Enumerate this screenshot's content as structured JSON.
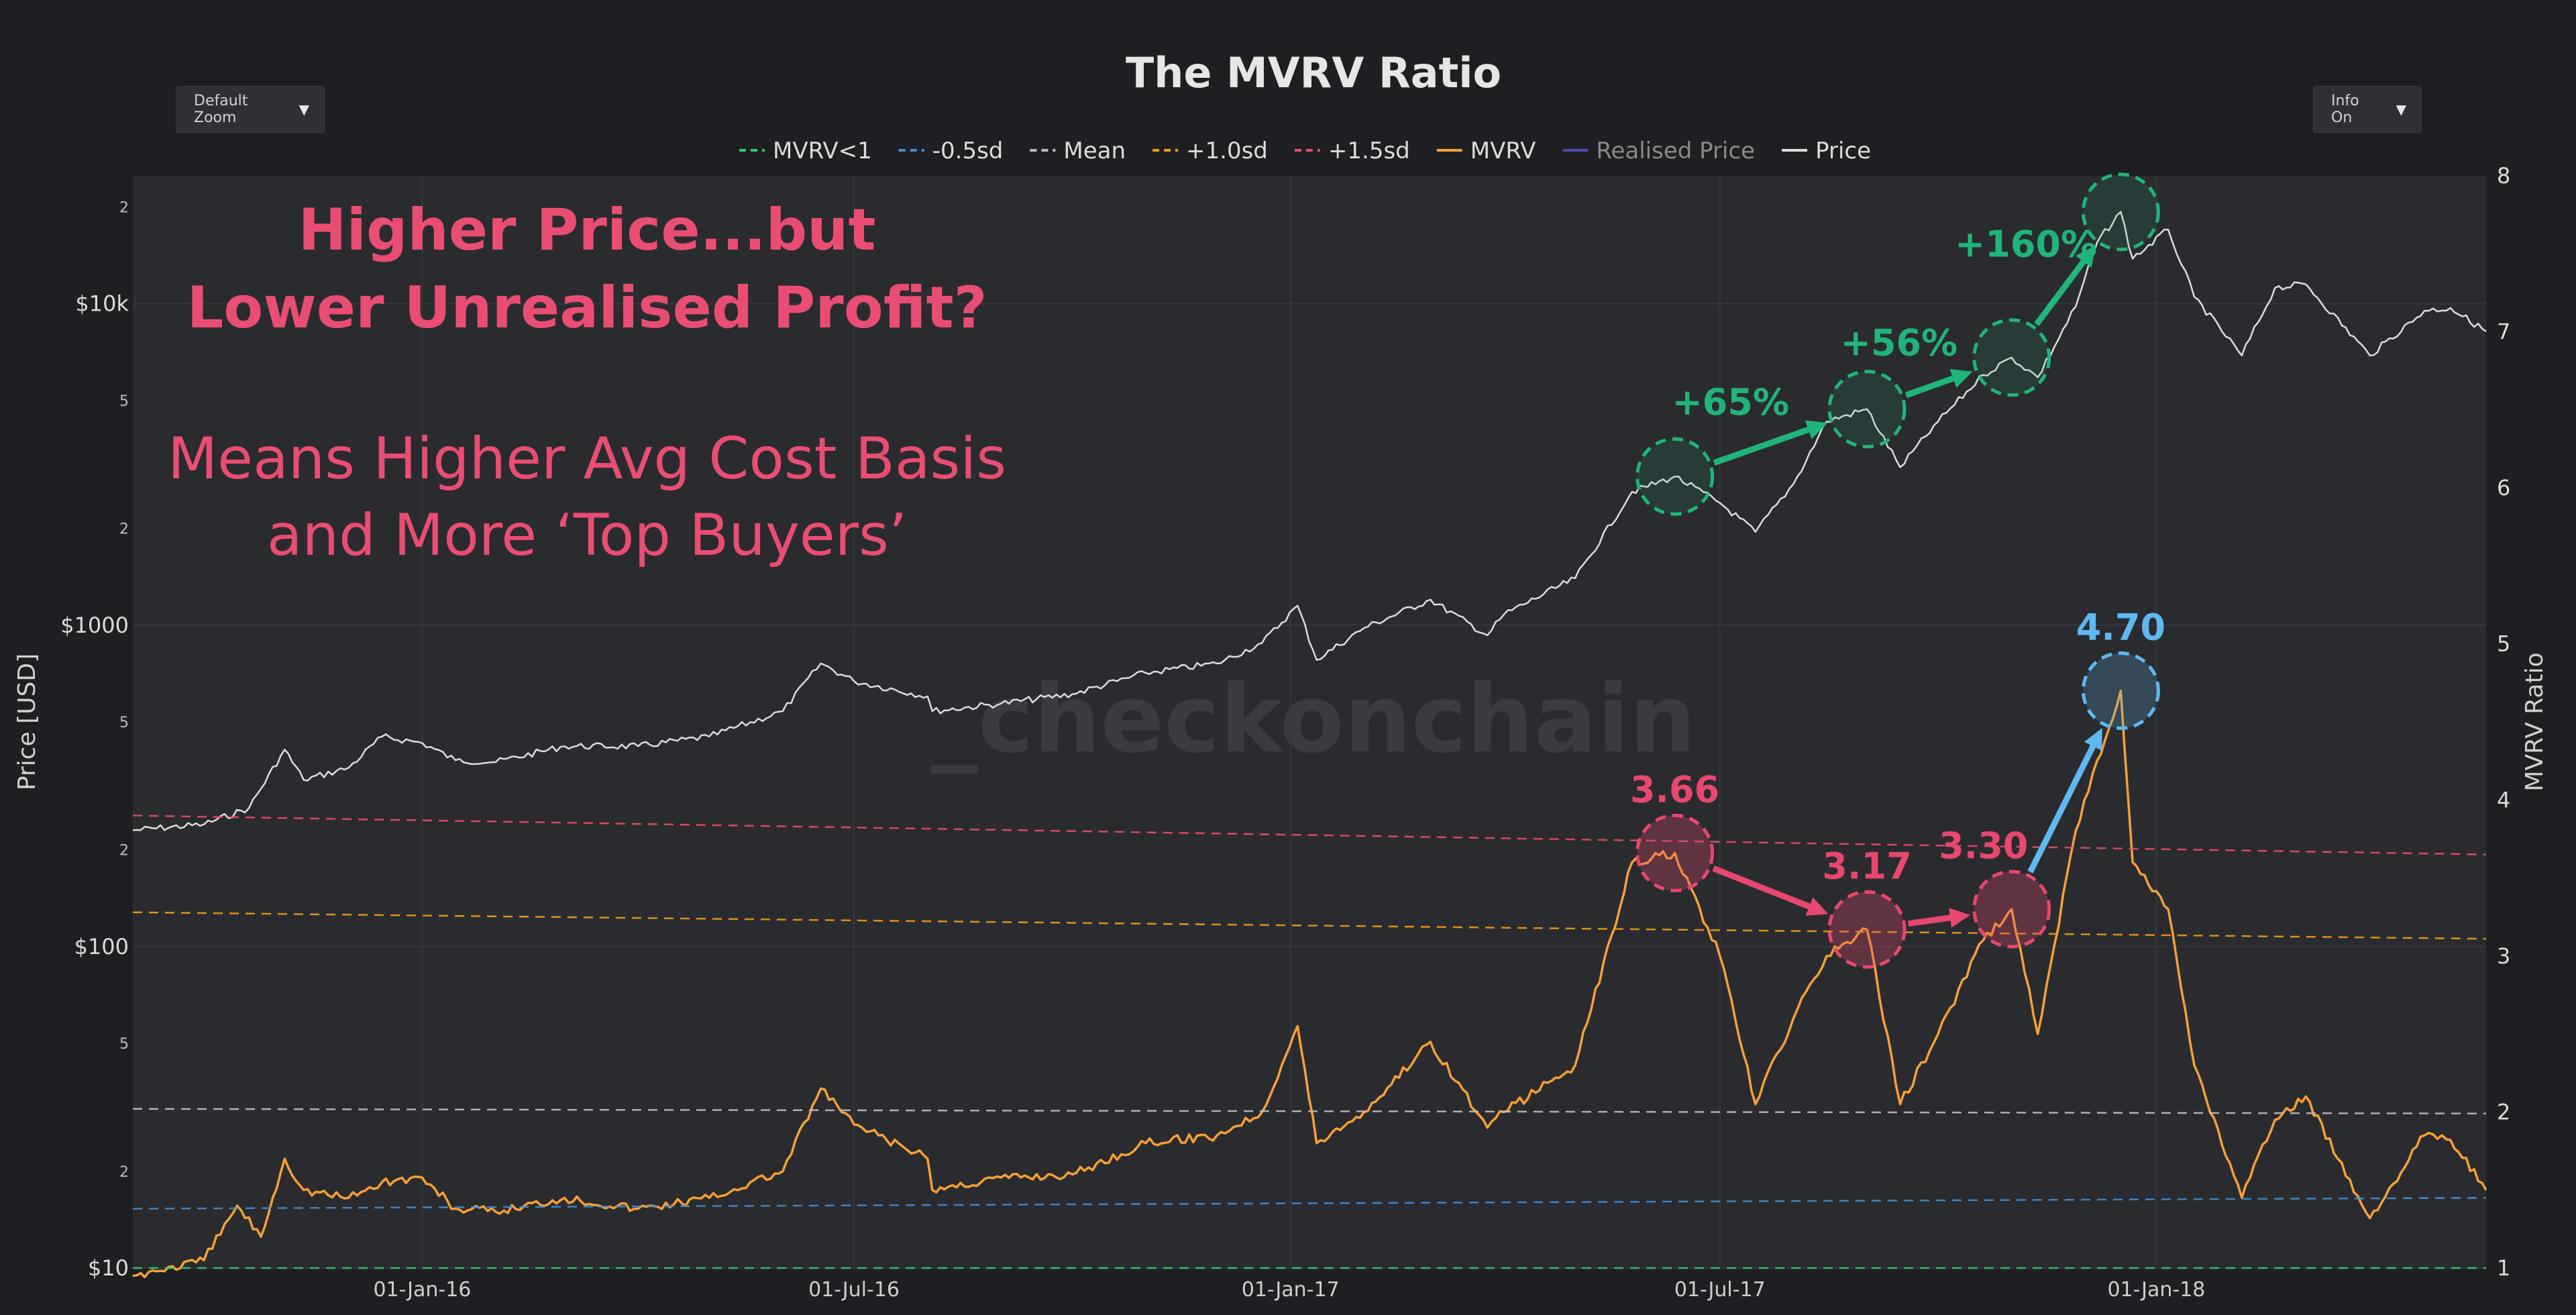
{
  "controls": {
    "zoom_label": "Default Zoom",
    "info_label": "Info On",
    "caret": "▼"
  },
  "chart_data": {
    "type": "line",
    "title": "The MVRV Ratio",
    "ylabel": "Price [USD]",
    "y2label": "MVRV Ratio",
    "watermark": "_checkonchain",
    "x_ticks": [
      "01-Jan-16",
      "01-Jul-16",
      "01-Jan-17",
      "01-Jul-17",
      "01-Jan-18"
    ],
    "x_range": [
      "2015-09-01",
      "2018-05-20"
    ],
    "y_left": {
      "scale": "log",
      "range": [
        10,
        25000
      ],
      "major_ticks": [
        {
          "v": 10,
          "label": "$10"
        },
        {
          "v": 100,
          "label": "$100"
        },
        {
          "v": 1000,
          "label": "$1000"
        },
        {
          "v": 10000,
          "label": "$10k"
        }
      ],
      "minor_ticks": [
        {
          "v": 20,
          "label": "2"
        },
        {
          "v": 50,
          "label": "5"
        },
        {
          "v": 200,
          "label": "2"
        },
        {
          "v": 500,
          "label": "5"
        },
        {
          "v": 2000,
          "label": "2"
        },
        {
          "v": 5000,
          "label": "5"
        },
        {
          "v": 20000,
          "label": "2"
        }
      ]
    },
    "y_right": {
      "scale": "linear",
      "range": [
        1,
        8
      ],
      "ticks": [
        1,
        2,
        3,
        4,
        5,
        6,
        7,
        8
      ]
    },
    "grid": true,
    "legend_position": "top-center",
    "legend": [
      {
        "name": "MVRV<1",
        "color": "#2ecc71",
        "dash": true
      },
      {
        "name": "-0.5sd",
        "color": "#3d8fd6",
        "dash": true
      },
      {
        "name": "Mean",
        "color": "#bfbfbf",
        "dash": true
      },
      {
        "name": "+1.0sd",
        "color": "#f39c12",
        "dash": true
      },
      {
        "name": "+1.5sd",
        "color": "#e74c6f",
        "dash": true
      },
      {
        "name": "MVRV",
        "color": "#f7a035",
        "dash": false
      },
      {
        "name": "Realised Price",
        "color": "#4b4bb5",
        "dash": false,
        "muted": true
      },
      {
        "name": "Price",
        "color": "#dcdcdc",
        "dash": false
      }
    ],
    "series": [
      {
        "name": "Price",
        "axis": "left",
        "color": "#dcdcdc",
        "points": [
          [
            "2015-09-01",
            230
          ],
          [
            "2015-10-01",
            240
          ],
          [
            "2015-10-20",
            270
          ],
          [
            "2015-11-04",
            410
          ],
          [
            "2015-11-12",
            330
          ],
          [
            "2015-12-01",
            360
          ],
          [
            "2015-12-15",
            450
          ],
          [
            "2016-01-01",
            430
          ],
          [
            "2016-01-15",
            380
          ],
          [
            "2016-02-01",
            375
          ],
          [
            "2016-03-01",
            420
          ],
          [
            "2016-04-01",
            420
          ],
          [
            "2016-05-01",
            450
          ],
          [
            "2016-06-01",
            540
          ],
          [
            "2016-06-17",
            760
          ],
          [
            "2016-07-01",
            670
          ],
          [
            "2016-08-01",
            600
          ],
          [
            "2016-08-03",
            540
          ],
          [
            "2016-09-01",
            570
          ],
          [
            "2016-10-01",
            610
          ],
          [
            "2016-11-01",
            710
          ],
          [
            "2016-12-01",
            760
          ],
          [
            "2016-12-20",
            880
          ],
          [
            "2017-01-04",
            1150
          ],
          [
            "2017-01-12",
            780
          ],
          [
            "2017-02-01",
            980
          ],
          [
            "2017-03-01",
            1200
          ],
          [
            "2017-03-25",
            930
          ],
          [
            "2017-04-01",
            1080
          ],
          [
            "2017-05-01",
            1400
          ],
          [
            "2017-05-25",
            2600
          ],
          [
            "2017-06-12",
            2900
          ],
          [
            "2017-07-01",
            2400
          ],
          [
            "2017-07-16",
            1950
          ],
          [
            "2017-08-01",
            2750
          ],
          [
            "2017-08-15",
            4300
          ],
          [
            "2017-09-01",
            4700
          ],
          [
            "2017-09-15",
            3100
          ],
          [
            "2017-10-01",
            4300
          ],
          [
            "2017-10-20",
            6000
          ],
          [
            "2017-11-01",
            6800
          ],
          [
            "2017-11-12",
            5900
          ],
          [
            "2017-11-28",
            9800
          ],
          [
            "2017-12-07",
            15500
          ],
          [
            "2017-12-17",
            19300
          ],
          [
            "2017-12-22",
            13800
          ],
          [
            "2018-01-06",
            17000
          ],
          [
            "2018-01-17",
            10500
          ],
          [
            "2018-02-06",
            6900
          ],
          [
            "2018-02-20",
            11200
          ],
          [
            "2018-03-05",
            11500
          ],
          [
            "2018-04-01",
            6900
          ],
          [
            "2018-04-24",
            9500
          ],
          [
            "2018-05-05",
            9700
          ],
          [
            "2018-05-20",
            8200
          ]
        ]
      },
      {
        "name": "MVRV",
        "axis": "right",
        "color": "#f7a035",
        "points": [
          [
            "2015-09-01",
            0.95
          ],
          [
            "2015-10-01",
            1.05
          ],
          [
            "2015-10-15",
            1.4
          ],
          [
            "2015-10-25",
            1.2
          ],
          [
            "2015-11-04",
            1.7
          ],
          [
            "2015-11-12",
            1.5
          ],
          [
            "2015-12-01",
            1.45
          ],
          [
            "2015-12-15",
            1.55
          ],
          [
            "2016-01-01",
            1.58
          ],
          [
            "2016-01-15",
            1.38
          ],
          [
            "2016-02-01",
            1.36
          ],
          [
            "2016-03-01",
            1.45
          ],
          [
            "2016-04-01",
            1.38
          ],
          [
            "2016-05-01",
            1.45
          ],
          [
            "2016-06-01",
            1.62
          ],
          [
            "2016-06-17",
            2.15
          ],
          [
            "2016-07-01",
            1.92
          ],
          [
            "2016-08-01",
            1.7
          ],
          [
            "2016-08-03",
            1.5
          ],
          [
            "2016-09-01",
            1.58
          ],
          [
            "2016-10-01",
            1.6
          ],
          [
            "2016-11-01",
            1.8
          ],
          [
            "2016-12-01",
            1.85
          ],
          [
            "2016-12-20",
            2.0
          ],
          [
            "2017-01-04",
            2.55
          ],
          [
            "2017-01-12",
            1.8
          ],
          [
            "2017-02-01",
            2.0
          ],
          [
            "2017-03-01",
            2.45
          ],
          [
            "2017-03-25",
            1.9
          ],
          [
            "2017-04-01",
            2.0
          ],
          [
            "2017-05-01",
            2.3
          ],
          [
            "2017-05-25",
            3.6
          ],
          [
            "2017-06-12",
            3.66
          ],
          [
            "2017-07-01",
            3.0
          ],
          [
            "2017-07-16",
            2.05
          ],
          [
            "2017-08-01",
            2.6
          ],
          [
            "2017-08-15",
            3.0
          ],
          [
            "2017-09-01",
            3.17
          ],
          [
            "2017-09-15",
            2.05
          ],
          [
            "2017-10-01",
            2.5
          ],
          [
            "2017-10-20",
            3.1
          ],
          [
            "2017-11-01",
            3.3
          ],
          [
            "2017-11-12",
            2.5
          ],
          [
            "2017-11-28",
            3.8
          ],
          [
            "2017-12-07",
            4.25
          ],
          [
            "2017-12-17",
            4.7
          ],
          [
            "2017-12-22",
            3.6
          ],
          [
            "2018-01-06",
            3.3
          ],
          [
            "2018-01-17",
            2.3
          ],
          [
            "2018-02-06",
            1.45
          ],
          [
            "2018-02-20",
            1.95
          ],
          [
            "2018-03-05",
            2.1
          ],
          [
            "2018-04-01",
            1.32
          ],
          [
            "2018-04-24",
            1.85
          ],
          [
            "2018-05-05",
            1.82
          ],
          [
            "2018-05-20",
            1.5
          ]
        ]
      },
      {
        "name": "+1.5sd",
        "axis": "right",
        "color": "#e74c6f",
        "dash": true,
        "points": [
          [
            "2015-09-01",
            3.9
          ],
          [
            "2018-05-20",
            3.65
          ]
        ]
      },
      {
        "name": "+1.0sd",
        "axis": "right",
        "color": "#f39c12",
        "dash": true,
        "points": [
          [
            "2015-09-01",
            3.28
          ],
          [
            "2018-05-20",
            3.11
          ]
        ]
      },
      {
        "name": "Mean",
        "axis": "right",
        "color": "#bfbfbf",
        "dash": true,
        "points": [
          [
            "2015-09-01",
            2.02
          ],
          [
            "2018-05-20",
            1.99
          ]
        ]
      },
      {
        "name": "-0.5sd",
        "axis": "right",
        "color": "#3d8fd6",
        "dash": true,
        "points": [
          [
            "2015-09-01",
            1.38
          ],
          [
            "2018-05-20",
            1.45
          ]
        ]
      },
      {
        "name": "MVRV<1",
        "axis": "right",
        "color": "#2ecc71",
        "dash": true,
        "points": [
          [
            "2015-09-01",
            1.0
          ],
          [
            "2018-05-20",
            1.0
          ]
        ]
      }
    ],
    "annotations": {
      "headline": [
        "Higher Price...but",
        "Lower Unrealised Profit?"
      ],
      "subtext": [
        "Means Higher Avg Cost Basis",
        "and More ‘Top Buyers’"
      ],
      "price_gains": [
        "+65%",
        "+56%",
        "+160%"
      ],
      "mvrv_peaks": [
        {
          "date": "2017-06-12",
          "value": 3.66,
          "label": "3.66",
          "color": "#e8476e"
        },
        {
          "date": "2017-09-01",
          "value": 3.17,
          "label": "3.17",
          "color": "#e8476e"
        },
        {
          "date": "2017-11-01",
          "value": 3.3,
          "label": "3.30",
          "color": "#e8476e"
        },
        {
          "date": "2017-12-17",
          "value": 4.7,
          "label": "4.70",
          "color": "#5fb8f0"
        }
      ],
      "price_peaks": [
        {
          "date": "2017-06-12",
          "value": 2900
        },
        {
          "date": "2017-09-01",
          "value": 4700
        },
        {
          "date": "2017-11-01",
          "value": 6800
        },
        {
          "date": "2017-12-17",
          "value": 19300
        }
      ],
      "colors": {
        "headline": "#ea4d72",
        "gain": "#1fb57a",
        "mvrv": "#e8476e",
        "peak": "#5fb8f0"
      }
    }
  }
}
